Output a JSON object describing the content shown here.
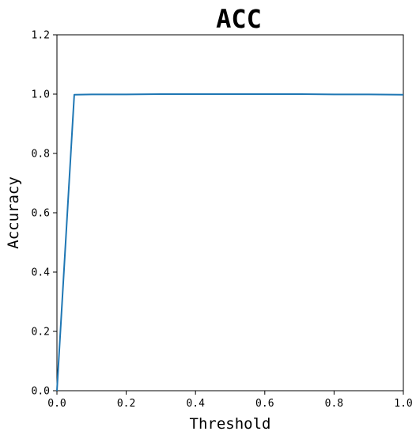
{
  "chart_data": {
    "type": "line",
    "title": "ACC",
    "xlabel": "Threshold",
    "ylabel": "Accuracy",
    "xlim": [
      0.0,
      1.0
    ],
    "ylim": [
      0.0,
      1.2
    ],
    "xticks": [
      "0.0",
      "0.2",
      "0.4",
      "0.6",
      "0.8",
      "1.0"
    ],
    "yticks": [
      "0.0",
      "0.2",
      "0.4",
      "0.6",
      "0.8",
      "1.0",
      "1.2"
    ],
    "grid": false,
    "series": [
      {
        "color": "#1f77b4",
        "x": [
          0.0,
          0.05,
          0.1,
          0.2,
          0.3,
          0.4,
          0.5,
          0.6,
          0.7,
          0.8,
          0.9,
          1.0
        ],
        "y": [
          0.0,
          0.998,
          0.999,
          0.999,
          1.0,
          1.0,
          1.0,
          1.0,
          1.0,
          0.999,
          0.999,
          0.998
        ]
      }
    ]
  }
}
